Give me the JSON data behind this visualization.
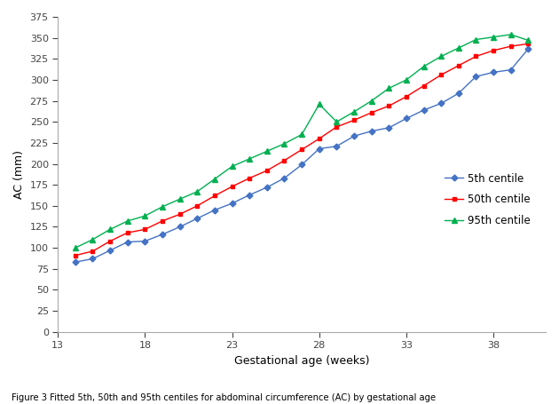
{
  "title": "Figure 3 Fitted 5th, 50th and 95th centiles for abdominal circumference (AC) by gestational age",
  "xlabel": "Gestational age (weeks)",
  "ylabel": "AC (mm)",
  "xlim": [
    13,
    41
  ],
  "ylim": [
    0,
    375
  ],
  "xticks": [
    13,
    18,
    23,
    28,
    33,
    38
  ],
  "yticks": [
    0,
    25,
    50,
    75,
    100,
    125,
    150,
    175,
    200,
    225,
    250,
    275,
    300,
    325,
    350,
    375
  ],
  "weeks": [
    14,
    15,
    16,
    17,
    18,
    19,
    20,
    21,
    22,
    23,
    24,
    25,
    26,
    27,
    28,
    29,
    30,
    31,
    32,
    33,
    34,
    35,
    36,
    37,
    38,
    39,
    40
  ],
  "p5": [
    83,
    87,
    97,
    107,
    108,
    116,
    125,
    135,
    145,
    153,
    163,
    172,
    183,
    199,
    218,
    221,
    233,
    239,
    243,
    254,
    264,
    272,
    284,
    304,
    309,
    312,
    337
  ],
  "p50": [
    91,
    96,
    108,
    118,
    122,
    132,
    140,
    150,
    162,
    173,
    183,
    192,
    204,
    217,
    230,
    244,
    252,
    261,
    269,
    280,
    293,
    306,
    317,
    328,
    335,
    340,
    343
  ],
  "p95": [
    100,
    110,
    122,
    132,
    138,
    149,
    158,
    167,
    182,
    197,
    206,
    215,
    224,
    235,
    271,
    250,
    262,
    275,
    290,
    300,
    316,
    328,
    338,
    348,
    351,
    354,
    347
  ],
  "color_5th": "#4472C4",
  "color_50th": "#FF0000",
  "color_95th": "#00B050",
  "legend_labels": [
    "5th centile",
    "50th centile",
    "95th centile"
  ],
  "background_color": "#FFFFFF"
}
